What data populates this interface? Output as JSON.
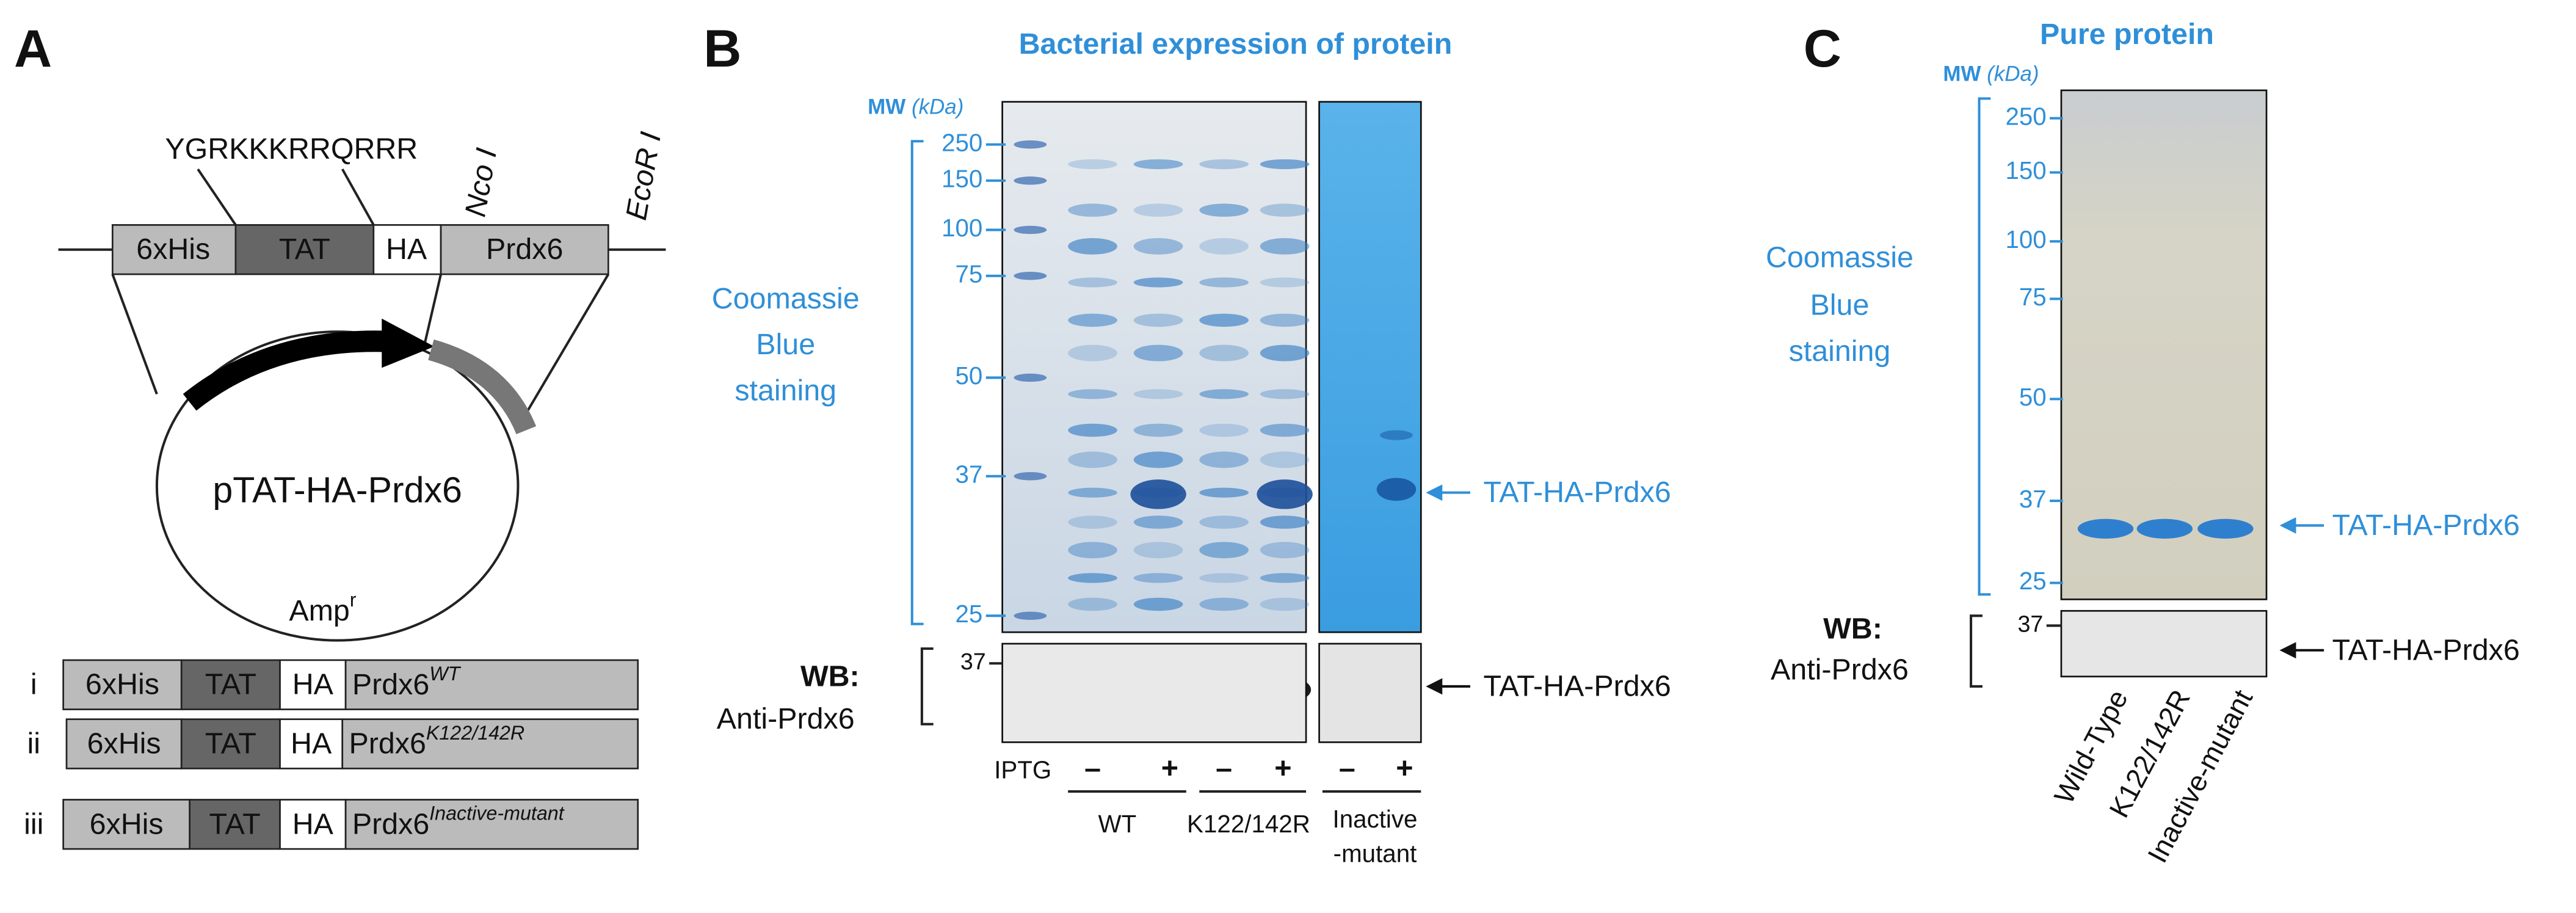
{
  "panel_a": {
    "label": "A",
    "peptide": "YGRKKKRRQRRR",
    "sites": [
      "Nco I",
      "EcoR I"
    ],
    "cassette": [
      "6xHis",
      "TAT",
      "HA",
      "Prdx6"
    ],
    "plasmid": "pTAT-HA-Prdx6",
    "resistance": {
      "text": "Amp",
      "superscript": "r"
    },
    "constructs": [
      {
        "numeral": "i",
        "segments": [
          "6xHis",
          "TAT",
          "HA",
          "Prdx6"
        ],
        "variant": "WT"
      },
      {
        "numeral": "ii",
        "segments": [
          "6xHis",
          "TAT",
          "HA",
          "Prdx6"
        ],
        "variant": "K122/142R"
      },
      {
        "numeral": "iii",
        "segments": [
          "6xHis",
          "TAT",
          "HA",
          "Prdx6"
        ],
        "variant": "Inactive-mutant"
      }
    ]
  },
  "panel_b": {
    "label": "B",
    "title": "Bacterial expression of protein",
    "mw": "MW",
    "mw_unit": "(kDa)",
    "mw_markers": [
      250,
      150,
      100,
      75,
      50,
      37,
      25
    ],
    "stain": [
      "Coomassie",
      "Blue",
      "staining"
    ],
    "band_label": "TAT-HA-Prdx6",
    "wb": "WB:",
    "antibody": "Anti-Prdx6",
    "wb_marker": 37,
    "wb_band_label": "TAT-HA-Prdx6",
    "induction": "IPTG",
    "induction_states": [
      "–",
      "+",
      "–",
      "+",
      "–",
      "+"
    ],
    "lane_groups": [
      [
        "WT"
      ],
      [
        "K122/142R"
      ],
      [
        "Inactive",
        "-mutant"
      ]
    ]
  },
  "panel_c": {
    "label": "C",
    "title": "Pure protein",
    "mw": "MW",
    "mw_unit": "(kDa)",
    "mw_markers": [
      250,
      150,
      100,
      75,
      50,
      37,
      25
    ],
    "stain": [
      "Coomassie",
      "Blue",
      "staining"
    ],
    "band_label": "TAT-HA-Prdx6",
    "wb": "WB:",
    "antibody": "Anti-Prdx6",
    "wb_marker": 37,
    "wb_band_label": "TAT-HA-Prdx6",
    "lanes": [
      "Wild-Type",
      "K122/142R",
      "Inactive-mutant"
    ]
  }
}
